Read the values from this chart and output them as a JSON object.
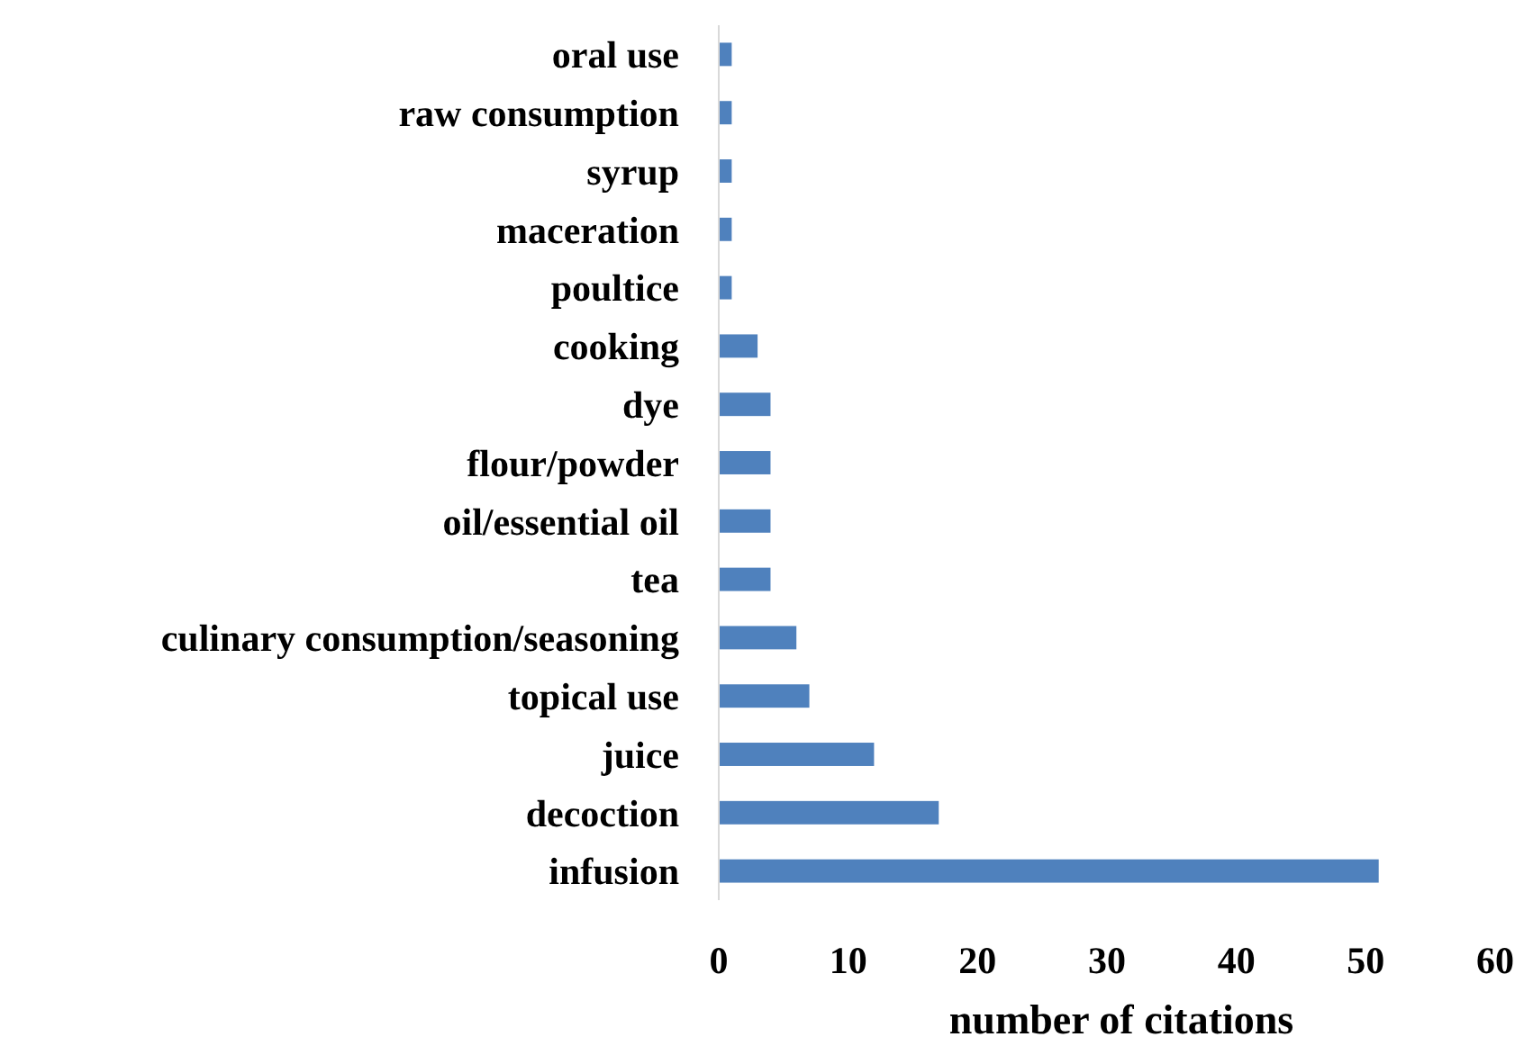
{
  "chart_data": {
    "type": "bar",
    "orientation": "horizontal",
    "xlabel": "number of citations",
    "categories": [
      "oral use",
      "raw consumption",
      "syrup",
      "maceration",
      "poultice",
      "cooking",
      "dye",
      "flour/powder",
      "oil/essential oil",
      "tea",
      "culinary consumption/seasoning",
      "topical use",
      "juice",
      "decoction",
      "infusion"
    ],
    "values": [
      1,
      1,
      1,
      1,
      1,
      3,
      4,
      4,
      4,
      4,
      6,
      7,
      12,
      17,
      51
    ],
    "color": "#4f81bd",
    "xlim": [
      0,
      60
    ],
    "xticks": [
      0,
      10,
      20,
      30,
      40,
      50,
      60
    ],
    "grid": false
  }
}
